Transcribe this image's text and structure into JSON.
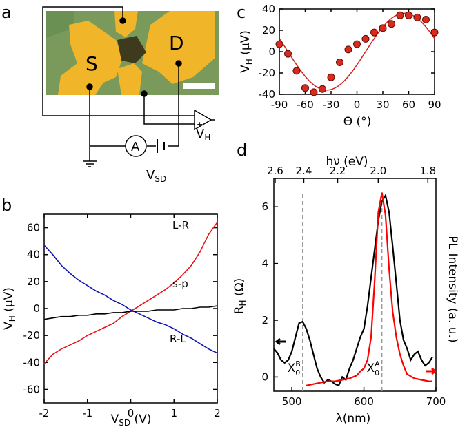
{
  "panels": {
    "a": {
      "label": "a",
      "device": {
        "source_label": "S",
        "drain_label": "D",
        "ammeter_label": "A",
        "vh_label": "V",
        "vh_sub": "H",
        "vsd_label": "V",
        "vsd_sub": "SD",
        "colors": {
          "substrate": "#7a9a5c",
          "electrode": "#f0b529",
          "flake": "#3e3a1e"
        }
      }
    },
    "b": {
      "label": "b"
    },
    "c": {
      "label": "c"
    },
    "d": {
      "label": "d"
    }
  },
  "chart_data": [
    {
      "id": "b",
      "type": "line",
      "xlabel": "V",
      "xlabel_sub": "SD",
      "xlabel_unit": " (V)",
      "ylabel": "V",
      "ylabel_sub": "H",
      "ylabel_unit": " (μV)",
      "xlim": [
        -2,
        2
      ],
      "ylim": [
        -70,
        70
      ],
      "xticks": [
        -2,
        -1,
        0,
        1,
        2
      ],
      "xticklabels": [
        "-2",
        "-1",
        "0",
        "1",
        "2"
      ],
      "yticks": [
        60,
        40,
        20,
        0,
        -20,
        -40,
        -60
      ],
      "yticklabels": [
        "60",
        "40",
        "20",
        "0",
        "-20",
        "-40",
        "-60"
      ],
      "grid": false,
      "x": [
        -2,
        -1.8,
        -1.6,
        -1.4,
        -1.2,
        -1,
        -0.8,
        -0.6,
        -0.4,
        -0.2,
        0,
        0.2,
        0.4,
        0.6,
        0.8,
        1,
        1.2,
        1.4,
        1.6,
        1.8,
        2
      ],
      "series": [
        {
          "name": "L-R",
          "color": "#e8141c",
          "values": [
            -41,
            -34,
            -30,
            -27,
            -24,
            -20,
            -17,
            -14,
            -11,
            -6,
            -2,
            2,
            6,
            10,
            14,
            19,
            25,
            32,
            42,
            55,
            64
          ]
        },
        {
          "name": "R-L",
          "color": "#1212b4",
          "values": [
            47,
            40,
            32,
            26,
            21,
            17,
            13,
            10,
            6,
            3,
            -1,
            -4,
            -7,
            -10,
            -12,
            -15,
            -19,
            -22,
            -26,
            -30,
            -33
          ]
        },
        {
          "name": "s-p",
          "color": "#000000",
          "values": [
            -8,
            -7,
            -6,
            -6,
            -5,
            -5,
            -4,
            -4,
            -3,
            -3,
            -2,
            -2,
            -2,
            -1,
            -1,
            -1,
            0,
            0,
            1,
            1,
            2
          ]
        }
      ]
    },
    {
      "id": "c",
      "type": "scatter",
      "xlabel": "Θ (°)",
      "ylabel": "V",
      "ylabel_sub": "H",
      "ylabel_unit": " (μV)",
      "xlim": [
        -90,
        90
      ],
      "ylim": [
        -40,
        40
      ],
      "xticks": [
        -90,
        -60,
        -30,
        0,
        30,
        60,
        90
      ],
      "xticklabels": [
        "-90",
        "-60",
        "-30",
        "0",
        "30",
        "60",
        "90"
      ],
      "yticks": [
        40,
        20,
        0,
        -20,
        -40
      ],
      "yticklabels": [
        "40",
        "20",
        "0",
        "-20",
        "-40"
      ],
      "grid": false,
      "marker_color": "#d92a1c",
      "fit_color": "#d81f1f",
      "points": [
        {
          "x": -90,
          "y": 7
        },
        {
          "x": -80,
          "y": -2
        },
        {
          "x": -70,
          "y": -18
        },
        {
          "x": -60,
          "y": -34
        },
        {
          "x": -50,
          "y": -38
        },
        {
          "x": -40,
          "y": -35
        },
        {
          "x": -30,
          "y": -24
        },
        {
          "x": -20,
          "y": -10
        },
        {
          "x": -10,
          "y": 2
        },
        {
          "x": 0,
          "y": 7
        },
        {
          "x": 10,
          "y": 12
        },
        {
          "x": 20,
          "y": 18
        },
        {
          "x": 30,
          "y": 22
        },
        {
          "x": 40,
          "y": 26
        },
        {
          "x": 50,
          "y": 34
        },
        {
          "x": 60,
          "y": 34
        },
        {
          "x": 70,
          "y": 32
        },
        {
          "x": 80,
          "y": 30
        },
        {
          "x": 90,
          "y": 18
        }
      ],
      "fit": {
        "amplitude": 36,
        "phase_deg": -10,
        "period_deg": 180
      }
    },
    {
      "id": "d",
      "type": "line",
      "xlabel": "λ(nm)",
      "ylabel": "R",
      "ylabel_sub": "H",
      "ylabel_unit": " (Ω)",
      "top_xlabel": "hν (eV)",
      "right_ylabel": "PL Intensity (a. u.)",
      "xlim": [
        475,
        700
      ],
      "ylim": [
        -0.5,
        7
      ],
      "xticks": [
        500,
        600,
        700
      ],
      "xticklabels": [
        "500",
        "600",
        "700"
      ],
      "top_xticks_ev": [
        2.6,
        2.4,
        2.2,
        2.0,
        1.8
      ],
      "top_xticklabels": [
        "2.6",
        "2.4",
        "2.2",
        "2.0",
        "1.8"
      ],
      "yticks": [
        6,
        4,
        2,
        0
      ],
      "yticklabels": [
        "6",
        "4",
        "2",
        "0"
      ],
      "grid": false,
      "annotations": [
        {
          "text": "X",
          "sup": "B",
          "sub": "0",
          "x_nm": 515
        },
        {
          "text": "X",
          "sup": "A",
          "sub": "0",
          "x_nm": 625
        }
      ],
      "series": [
        {
          "name": "R_H",
          "color": "#000000",
          "axis": "left",
          "x": [
            475,
            480,
            485,
            490,
            495,
            500,
            505,
            510,
            515,
            520,
            525,
            530,
            535,
            540,
            545,
            550,
            555,
            560,
            565,
            570,
            575,
            580,
            585,
            590,
            595,
            600,
            605,
            610,
            615,
            620,
            625,
            630,
            635,
            640,
            645,
            650,
            655,
            660,
            665,
            670,
            675,
            680,
            685,
            690,
            695
          ],
          "values": [
            1.0,
            0.85,
            0.6,
            0.5,
            0.6,
            0.9,
            1.4,
            1.9,
            1.95,
            1.7,
            1.3,
            0.8,
            0.3,
            0.0,
            -0.2,
            -0.1,
            -0.15,
            -0.25,
            -0.3,
            0.0,
            -0.1,
            0.3,
            0.6,
            1.0,
            1.4,
            1.7,
            2.5,
            3.5,
            4.5,
            5.5,
            6.2,
            6.4,
            5.8,
            4.6,
            3.3,
            2.0,
            1.3,
            1.0,
            0.6,
            0.8,
            0.9,
            0.6,
            0.4,
            0.5,
            0.7
          ]
        },
        {
          "name": "PL",
          "color": "#ff0000",
          "axis": "right",
          "x": [
            520,
            530,
            540,
            550,
            560,
            570,
            580,
            590,
            595,
            600,
            605,
            610,
            615,
            620,
            625,
            630,
            635,
            640,
            645,
            650,
            655,
            660,
            670,
            680,
            690,
            695
          ],
          "values": [
            -0.3,
            -0.25,
            -0.2,
            -0.15,
            -0.15,
            -0.1,
            -0.05,
            0.05,
            0.2,
            0.3,
            0.6,
            1.4,
            3.4,
            5.8,
            6.5,
            5.7,
            3.8,
            2.3,
            1.4,
            0.8,
            0.4,
            0.1,
            -0.05,
            -0.1,
            -0.15,
            -0.15
          ]
        }
      ]
    }
  ]
}
